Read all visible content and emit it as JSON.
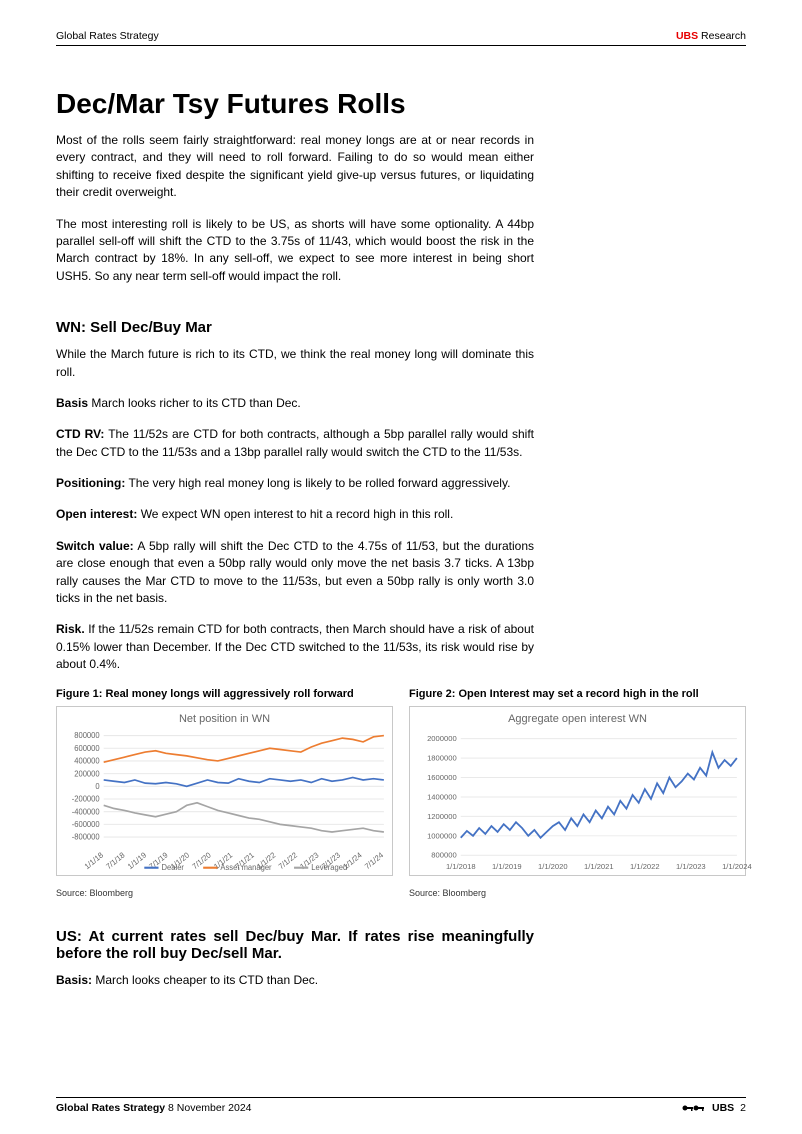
{
  "header": {
    "left": "Global Rates Strategy",
    "right_brand": "UBS",
    "right_suffix": " Research"
  },
  "title": "Dec/Mar Tsy Futures Rolls",
  "intro_para1": "Most of the rolls seem fairly straightforward: real money longs are at or near records in every contract, and they will need to roll forward. Failing to do so would mean either shifting to receive fixed despite the significant yield give-up versus futures, or liquidating their credit overweight.",
  "intro_para2": "The most interesting roll is likely to be US, as shorts will have some optionality. A 44bp parallel sell-off will shift the CTD to the 3.75s of 11/43, which would boost the risk in the March contract by 18%. In any sell-off, we expect to see more interest in being short USH5. So any near term sell-off would impact the roll.",
  "sec1_heading": "WN: Sell Dec/Buy Mar",
  "sec1_p1": "While the March future is rich to its CTD, we think the real money long will dominate this roll.",
  "sec1_basis_label": "Basis",
  "sec1_basis_text": " March looks richer to its CTD than Dec.",
  "sec1_ctd_label": "CTD RV:",
  "sec1_ctd_text": " The 11/52s are CTD for both contracts, although a 5bp parallel rally would shift the Dec CTD to the 11/53s and a 13bp parallel rally would switch the CTD to the 11/53s.",
  "sec1_pos_label": "Positioning:",
  "sec1_pos_text": " The very high real money long is likely to be rolled forward aggressively.",
  "sec1_oi_label": "Open interest:",
  "sec1_oi_text": " We expect WN open interest to hit a record high in this roll.",
  "sec1_sw_label": "Switch value:",
  "sec1_sw_text": " A 5bp rally will shift the Dec CTD to the 4.75s of 11/53, but the durations are close enough that even a 50bp rally would only move the net basis 3.7 ticks. A 13bp rally causes the Mar CTD to move to the 11/53s, but even a 50bp rally is only worth 3.0 ticks in the net basis.",
  "sec1_risk_label": "Risk.",
  "sec1_risk_text": " If the 11/52s remain CTD for both contracts, then March should have a risk of about 0.15% lower than December. If the Dec CTD switched to the 11/53s, its risk would rise by about 0.4%.",
  "fig1": {
    "caption": "Figure 1: Real money longs will aggressively roll forward",
    "chart_title": "Net position in WN",
    "source": "Source: Bloomberg",
    "y_ticks": [
      "800000",
      "600000",
      "400000",
      "200000",
      "0",
      "-200000",
      "-400000",
      "-600000",
      "-800000"
    ],
    "x_ticks": [
      "1/1/18",
      "7/1/18",
      "1/1/19",
      "7/1/19",
      "1/1/20",
      "7/1/20",
      "1/1/21",
      "7/1/21",
      "1/1/22",
      "7/1/22",
      "1/1/23",
      "7/1/23",
      "1/1/24",
      "7/1/24"
    ],
    "legend": [
      {
        "label": "Dealer",
        "color": "#4472c4"
      },
      {
        "label": "Asset manager",
        "color": "#ed7d31"
      },
      {
        "label": "Leveraged",
        "color": "#a5a5a5"
      }
    ],
    "series": {
      "dealer": {
        "color": "#4472c4",
        "values": [
          100000,
          80000,
          60000,
          100000,
          50000,
          40000,
          60000,
          40000,
          0,
          50000,
          100000,
          60000,
          50000,
          120000,
          80000,
          60000,
          120000,
          100000,
          80000,
          100000,
          60000,
          120000,
          80000,
          100000,
          140000,
          100000,
          120000,
          100000
        ]
      },
      "asset_manager": {
        "color": "#ed7d31",
        "values": [
          380000,
          420000,
          460000,
          500000,
          540000,
          560000,
          520000,
          500000,
          480000,
          450000,
          420000,
          400000,
          440000,
          480000,
          520000,
          560000,
          600000,
          580000,
          560000,
          540000,
          620000,
          680000,
          720000,
          760000,
          740000,
          700000,
          780000,
          800000
        ]
      },
      "leveraged": {
        "color": "#a5a5a5",
        "values": [
          -300000,
          -350000,
          -380000,
          -420000,
          -450000,
          -480000,
          -440000,
          -400000,
          -300000,
          -260000,
          -320000,
          -380000,
          -420000,
          -460000,
          -500000,
          -520000,
          -560000,
          -600000,
          -620000,
          -640000,
          -660000,
          -700000,
          -720000,
          -700000,
          -680000,
          -660000,
          -700000,
          -720000
        ]
      }
    },
    "ylim": [
      -900000,
      900000
    ],
    "grid_color": "#e9e9e9",
    "background_color": "#ffffff"
  },
  "fig2": {
    "caption": "Figure 2: Open Interest may set a record high in the roll",
    "chart_title": "Aggregate open interest WN",
    "source": "Source: Bloomberg",
    "y_ticks": [
      "2000000",
      "1800000",
      "1600000",
      "1400000",
      "1200000",
      "1000000",
      "800000"
    ],
    "x_ticks": [
      "1/1/2018",
      "1/1/2019",
      "1/1/2020",
      "1/1/2021",
      "1/1/2022",
      "1/1/2023",
      "1/1/2024"
    ],
    "series_color": "#4472c4",
    "values": [
      980000,
      1050000,
      1000000,
      1080000,
      1020000,
      1100000,
      1040000,
      1120000,
      1060000,
      1140000,
      1080000,
      1000000,
      1060000,
      980000,
      1040000,
      1100000,
      1140000,
      1060000,
      1180000,
      1100000,
      1220000,
      1140000,
      1260000,
      1180000,
      1300000,
      1220000,
      1360000,
      1280000,
      1420000,
      1340000,
      1480000,
      1380000,
      1540000,
      1440000,
      1600000,
      1500000,
      1560000,
      1640000,
      1580000,
      1700000,
      1620000,
      1860000,
      1700000,
      1780000,
      1720000,
      1800000
    ],
    "ylim": [
      800000,
      2100000
    ],
    "grid_color": "#e9e9e9",
    "background_color": "#ffffff"
  },
  "sec2_heading": "US: At current rates sell Dec/buy Mar. If rates rise meaningfully before the roll buy Dec/sell Mar.",
  "sec2_basis_label": "Basis:",
  "sec2_basis_text": " March looks cheaper to its CTD than Dec.",
  "footer": {
    "left_strong": "Global Rates Strategy",
    "left_date": "  8 November 2024",
    "brand": "UBS",
    "page": "2"
  }
}
